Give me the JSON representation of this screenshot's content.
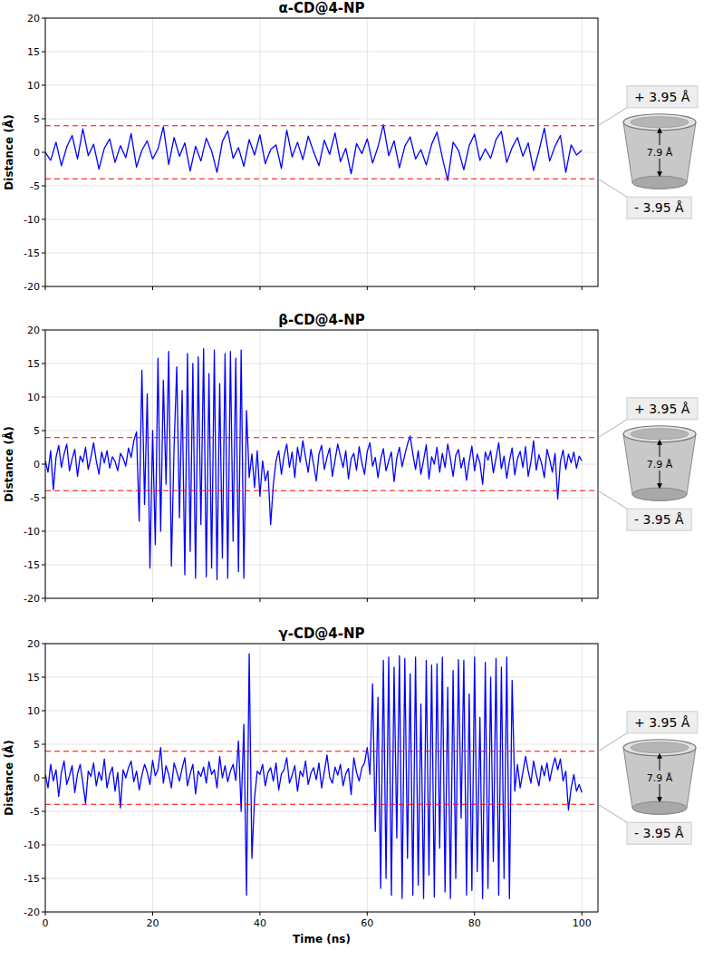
{
  "chart_data": [
    {
      "type": "line",
      "title": "α-CD@4-NP",
      "ylabel": "Distance (Å)",
      "x": [
        0,
        1,
        2,
        3,
        4,
        5,
        6,
        7,
        8,
        9,
        10,
        11,
        12,
        13,
        14,
        15,
        16,
        17,
        18,
        19,
        20,
        21,
        22,
        23,
        24,
        25,
        26,
        27,
        28,
        29,
        30,
        31,
        32,
        33,
        34,
        35,
        36,
        37,
        38,
        39,
        40,
        41,
        42,
        43,
        44,
        45,
        46,
        47,
        48,
        49,
        50,
        51,
        52,
        53,
        54,
        55,
        56,
        57,
        58,
        59,
        60,
        61,
        62,
        63,
        64,
        65,
        66,
        67,
        68,
        69,
        70,
        71,
        72,
        73,
        74,
        75,
        76,
        77,
        78,
        79,
        80,
        81,
        82,
        83,
        84,
        85,
        86,
        87,
        88,
        89,
        90,
        91,
        92,
        93,
        94,
        95,
        96,
        97,
        98,
        99,
        100
      ],
      "values": [
        0.0,
        -1.2,
        1.5,
        -2.0,
        0.8,
        2.5,
        -1.0,
        3.5,
        -0.5,
        1.2,
        -2.5,
        0.6,
        2.0,
        -1.5,
        1.0,
        -0.8,
        2.8,
        -2.2,
        0.3,
        1.7,
        -1.0,
        0.5,
        3.8,
        -1.8,
        2.2,
        -0.6,
        1.4,
        -2.8,
        0.9,
        -1.3,
        2.1,
        0.2,
        -3.0,
        1.6,
        3.2,
        -0.9,
        0.7,
        -2.1,
        1.9,
        -0.4,
        2.6,
        -1.7,
        0.4,
        1.1,
        -2.4,
        3.3,
        -0.7,
        1.5,
        -1.1,
        2.4,
        0.1,
        -2.0,
        1.8,
        -0.3,
        2.9,
        -1.4,
        0.6,
        -3.2,
        1.3,
        -0.2,
        2.0,
        -1.6,
        0.8,
        4.1,
        -0.5,
        1.7,
        -2.3,
        0.9,
        2.3,
        -1.0,
        0.4,
        -1.9,
        1.2,
        3.0,
        -0.8,
        -4.2,
        1.5,
        0.3,
        -2.6,
        1.0,
        2.7,
        -1.2,
        0.5,
        -0.9,
        1.9,
        3.1,
        -1.5,
        0.7,
        2.2,
        -0.6,
        1.4,
        -2.7,
        0.2,
        3.6,
        -1.3,
        0.9,
        2.5,
        -3.0,
        1.1,
        -0.4,
        0.3
      ],
      "color": "#0000ff",
      "xlim": [
        0,
        103
      ],
      "xticks": [
        0,
        20,
        40,
        60,
        80,
        100
      ],
      "ylim": [
        -20,
        20
      ],
      "yticks": [
        -20,
        -15,
        -10,
        -5,
        0,
        5,
        10,
        15,
        20
      ],
      "grid": true,
      "tick_labels": "y",
      "annotations": [
        {
          "text": "+ 3.95 Å",
          "value": 3.95,
          "line_style": "dashed",
          "color": "#ff0000"
        },
        {
          "text": "7.9 Å",
          "value": 7.9
        },
        {
          "text": "- 3.95 Å",
          "value": -3.95,
          "line_style": "dashed",
          "color": "#ff0000"
        }
      ]
    },
    {
      "type": "line",
      "title": "β-CD@4-NP",
      "ylabel": "Distance (Å)",
      "x": [
        0,
        0.5,
        1,
        1.5,
        2,
        2.5,
        3,
        3.5,
        4,
        4.5,
        5,
        5.5,
        6,
        6.5,
        7,
        7.5,
        8,
        8.5,
        9,
        9.5,
        10,
        10.5,
        11,
        11.5,
        12,
        12.5,
        13,
        13.5,
        14,
        14.5,
        15,
        15.5,
        16,
        16.5,
        17,
        17.5,
        18,
        18.5,
        19,
        19.5,
        20,
        20.5,
        21,
        21.5,
        22,
        22.5,
        23,
        23.5,
        24,
        24.5,
        25,
        25.5,
        26,
        26.5,
        27,
        27.5,
        28,
        28.5,
        29,
        29.5,
        30,
        30.5,
        31,
        31.5,
        32,
        32.5,
        33,
        33.5,
        34,
        34.5,
        35,
        35.5,
        36,
        36.5,
        37,
        37.5,
        38,
        38.5,
        39,
        39.5,
        40,
        40.5,
        41,
        41.5,
        42,
        42.5,
        43,
        43.5,
        44,
        44.5,
        45,
        45.5,
        46,
        46.5,
        47,
        47.5,
        48,
        48.5,
        49,
        49.5,
        50,
        50.5,
        51,
        51.5,
        52,
        52.5,
        53,
        53.5,
        54,
        54.5,
        55,
        55.5,
        56,
        56.5,
        57,
        57.5,
        58,
        58.5,
        59,
        59.5,
        60,
        60.5,
        61,
        61.5,
        62,
        62.5,
        63,
        63.5,
        64,
        64.5,
        65,
        65.5,
        66,
        66.5,
        67,
        67.5,
        68,
        68.5,
        69,
        69.5,
        70,
        70.5,
        71,
        71.5,
        72,
        72.5,
        73,
        73.5,
        74,
        74.5,
        75,
        75.5,
        76,
        76.5,
        77,
        77.5,
        78,
        78.5,
        79,
        79.5,
        80,
        80.5,
        81,
        81.5,
        82,
        82.5,
        83,
        83.5,
        84,
        84.5,
        85,
        85.5,
        86,
        86.5,
        87,
        87.5,
        88,
        88.5,
        89,
        89.5,
        90,
        90.5,
        91,
        91.5,
        92,
        92.5,
        93,
        93.5,
        94,
        94.5,
        95,
        95.5,
        96,
        96.5,
        97,
        97.5,
        98,
        98.5,
        99,
        99.5,
        100
      ],
      "values": [
        0.5,
        -1.2,
        2.0,
        -3.8,
        1.0,
        2.8,
        -0.5,
        1.5,
        3.0,
        -1.0,
        0.8,
        2.2,
        -1.8,
        1.2,
        0.3,
        2.5,
        -0.8,
        1.0,
        3.2,
        0.5,
        -1.5,
        1.8,
        0.2,
        2.0,
        -0.6,
        1.1,
        0.4,
        -1.0,
        1.6,
        0.9,
        -0.3,
        2.4,
        1.0,
        3.5,
        4.8,
        -8.5,
        14.0,
        -6.0,
        10.5,
        -15.5,
        5.0,
        -12.0,
        15.8,
        -10.0,
        12.5,
        -3.0,
        16.8,
        -15.2,
        2.5,
        14.5,
        -8.0,
        11.0,
        -16.5,
        16.5,
        -13.0,
        15.0,
        -17.0,
        16.0,
        -9.0,
        17.2,
        -16.8,
        13.5,
        -15.5,
        17.0,
        -17.2,
        12.0,
        -14.0,
        16.5,
        -17.0,
        16.8,
        -11.5,
        15.8,
        -16.0,
        17.0,
        -17.0,
        8.0,
        -2.0,
        1.5,
        -3.5,
        2.0,
        -4.8,
        0.5,
        -2.5,
        -1.0,
        -9.0,
        -3.0,
        0.5,
        2.0,
        -1.5,
        1.2,
        3.0,
        -0.5,
        1.8,
        -2.0,
        2.5,
        0.3,
        3.5,
        1.0,
        -1.2,
        2.2,
        0.0,
        -2.5,
        1.5,
        2.8,
        -0.8,
        1.0,
        2.4,
        -1.8,
        0.6,
        3.0,
        1.2,
        -0.5,
        2.0,
        -2.2,
        0.8,
        1.6,
        -0.9,
        2.6,
        0.2,
        -1.5,
        1.9,
        3.2,
        -0.3,
        1.0,
        -2.0,
        0.7,
        2.3,
        -1.0,
        0.5,
        1.8,
        -2.6,
        0.9,
        2.5,
        -0.4,
        1.4,
        3.0,
        4.2,
        1.5,
        -0.8,
        2.0,
        -1.5,
        0.6,
        2.9,
        -2.2,
        1.1,
        0.0,
        2.5,
        -1.2,
        1.6,
        -0.5,
        3.0,
        0.8,
        -1.8,
        1.3,
        2.2,
        -0.6,
        1.0,
        -2.4,
        0.4,
        2.7,
        -1.0,
        1.5,
        0.2,
        -3.0,
        1.8,
        0.6,
        2.0,
        -1.3,
        0.9,
        3.2,
        -0.7,
        1.2,
        -2.1,
        0.5,
        2.4,
        -1.6,
        0.8,
        1.9,
        -0.5,
        2.6,
        -1.8,
        0.3,
        3.5,
        -0.9,
        1.4,
        0.1,
        -2.0,
        2.2,
        0.7,
        -1.2,
        1.6,
        -5.2,
        0.4,
        2.1,
        -0.8,
        1.5,
        0.2,
        1.8,
        -0.6,
        1.2,
        0.5
      ],
      "color": "#0000ff",
      "xlim": [
        0,
        103
      ],
      "xticks": [
        0,
        20,
        40,
        60,
        80,
        100
      ],
      "ylim": [
        -20,
        20
      ],
      "yticks": [
        -20,
        -15,
        -10,
        -5,
        0,
        5,
        10,
        15,
        20
      ],
      "grid": true,
      "tick_labels": "y",
      "annotations": [
        {
          "text": "+ 3.95 Å",
          "value": 3.95,
          "line_style": "dashed",
          "color": "#ff0000"
        },
        {
          "text": "7.9 Å",
          "value": 7.9
        },
        {
          "text": "- 3.95 Å",
          "value": -3.95,
          "line_style": "dashed",
          "color": "#ff0000"
        }
      ]
    },
    {
      "type": "line",
      "title": "γ-CD@4-NP",
      "ylabel": "Distance (Å)",
      "xlabel": "Time (ns)",
      "x": [
        0,
        0.5,
        1,
        1.5,
        2,
        2.5,
        3,
        3.5,
        4,
        4.5,
        5,
        5.5,
        6,
        6.5,
        7,
        7.5,
        8,
        8.5,
        9,
        9.5,
        10,
        10.5,
        11,
        11.5,
        12,
        12.5,
        13,
        13.5,
        14,
        14.5,
        15,
        15.5,
        16,
        16.5,
        17,
        17.5,
        18,
        18.5,
        19,
        19.5,
        20,
        20.5,
        21,
        21.5,
        22,
        22.5,
        23,
        23.5,
        24,
        24.5,
        25,
        25.5,
        26,
        26.5,
        27,
        27.5,
        28,
        28.5,
        29,
        29.5,
        30,
        30.5,
        31,
        31.5,
        32,
        32.5,
        33,
        33.5,
        34,
        34.5,
        35,
        35.5,
        36,
        36.5,
        37,
        37.5,
        38,
        38.5,
        39,
        39.5,
        40,
        40.5,
        41,
        41.5,
        42,
        42.5,
        43,
        43.5,
        44,
        44.5,
        45,
        45.5,
        46,
        46.5,
        47,
        47.5,
        48,
        48.5,
        49,
        49.5,
        50,
        50.5,
        51,
        51.5,
        52,
        52.5,
        53,
        53.5,
        54,
        54.5,
        55,
        55.5,
        56,
        56.5,
        57,
        57.5,
        58,
        58.5,
        59,
        59.5,
        60,
        60.5,
        61,
        61.5,
        62,
        62.5,
        63,
        63.5,
        64,
        64.5,
        65,
        65.5,
        66,
        66.5,
        67,
        67.5,
        68,
        68.5,
        69,
        69.5,
        70,
        70.5,
        71,
        71.5,
        72,
        72.5,
        73,
        73.5,
        74,
        74.5,
        75,
        75.5,
        76,
        76.5,
        77,
        77.5,
        78,
        78.5,
        79,
        79.5,
        80,
        80.5,
        81,
        81.5,
        82,
        82.5,
        83,
        83.5,
        84,
        84.5,
        85,
        85.5,
        86,
        86.5,
        87,
        87.5,
        88,
        88.5,
        89,
        89.5,
        90,
        90.5,
        91,
        91.5,
        92,
        92.5,
        93,
        93.5,
        94,
        94.5,
        95,
        95.5,
        96,
        96.5,
        97,
        97.5,
        98,
        98.5,
        99,
        99.5,
        100
      ],
      "values": [
        0.5,
        -1.5,
        2.0,
        -0.5,
        1.2,
        -2.8,
        0.8,
        2.5,
        -1.0,
        0.3,
        1.8,
        -2.2,
        0.6,
        2.0,
        -0.8,
        -3.8,
        1.0,
        0.2,
        2.2,
        -1.2,
        0.9,
        -0.4,
        2.8,
        -1.5,
        0.5,
        1.6,
        -2.0,
        0.8,
        -4.5,
        1.2,
        0.0,
        1.5,
        2.5,
        -0.6,
        1.0,
        -1.8,
        0.4,
        2.0,
        0.8,
        -1.0,
        2.6,
        0.3,
        1.2,
        4.5,
        -0.8,
        1.8,
        0.5,
        -1.5,
        2.2,
        0.9,
        -0.5,
        1.4,
        3.0,
        -1.2,
        0.6,
        2.0,
        -2.4,
        1.0,
        0.2,
        1.6,
        -0.8,
        2.4,
        0.5,
        1.2,
        -1.5,
        3.2,
        0.0,
        1.8,
        -0.6,
        1.0,
        2.0,
        -0.4,
        5.5,
        -5.0,
        8.0,
        -17.5,
        18.5,
        -12.0,
        -3.0,
        1.0,
        0.5,
        2.0,
        -1.2,
        0.8,
        1.5,
        -0.5,
        2.2,
        -1.8,
        0.6,
        1.2,
        3.0,
        -0.8,
        0.4,
        1.8,
        -2.0,
        1.0,
        0.2,
        2.5,
        -1.0,
        0.7,
        1.5,
        -0.3,
        2.2,
        -1.5,
        0.9,
        3.4,
        0.1,
        -0.8,
        1.6,
        0.4,
        2.0,
        -1.2,
        0.6,
        1.4,
        -2.5,
        3.0,
        0.8,
        -0.5,
        1.5,
        2.2,
        4.5,
        0.5,
        14.0,
        -8.0,
        12.0,
        -16.5,
        17.5,
        -15.0,
        18.0,
        -17.5,
        16.5,
        -9.0,
        18.2,
        -18.0,
        17.8,
        -12.0,
        15.5,
        -17.5,
        18.0,
        -16.0,
        11.0,
        -18.0,
        17.5,
        -14.5,
        16.8,
        -17.8,
        17.0,
        -10.5,
        18.0,
        -17.0,
        13.5,
        -18.0,
        16.0,
        -15.0,
        17.6,
        -6.0,
        17.5,
        -17.5,
        12.5,
        -16.8,
        18.0,
        -14.0,
        9.0,
        -18.0,
        17.2,
        -16.5,
        15.0,
        -12.5,
        17.8,
        -17.5,
        16.5,
        -15.0,
        18.0,
        -18.0,
        14.5,
        -2.0,
        2.0,
        -1.5,
        0.8,
        3.2,
        1.0,
        -0.8,
        2.5,
        0.5,
        -1.2,
        1.8,
        0.3,
        2.2,
        -0.5,
        1.5,
        3.0,
        1.2,
        2.8,
        -0.5,
        1.0,
        -4.8,
        -1.5,
        0.5,
        -2.0,
        -1.0,
        -2.2
      ],
      "color": "#0000ff",
      "xlim": [
        0,
        103
      ],
      "xticks": [
        0,
        20,
        40,
        60,
        80,
        100
      ],
      "ylim": [
        -20,
        20
      ],
      "yticks": [
        -20,
        -15,
        -10,
        -5,
        0,
        5,
        10,
        15,
        20
      ],
      "grid": true,
      "tick_labels": true,
      "annotations": [
        {
          "text": "+ 3.95 Å",
          "value": 3.95,
          "line_style": "dashed",
          "color": "#ff0000"
        },
        {
          "text": "7.9 Å",
          "value": 7.9
        },
        {
          "text": "- 3.95 Å",
          "value": -3.95,
          "line_style": "dashed",
          "color": "#ff0000"
        }
      ]
    }
  ]
}
